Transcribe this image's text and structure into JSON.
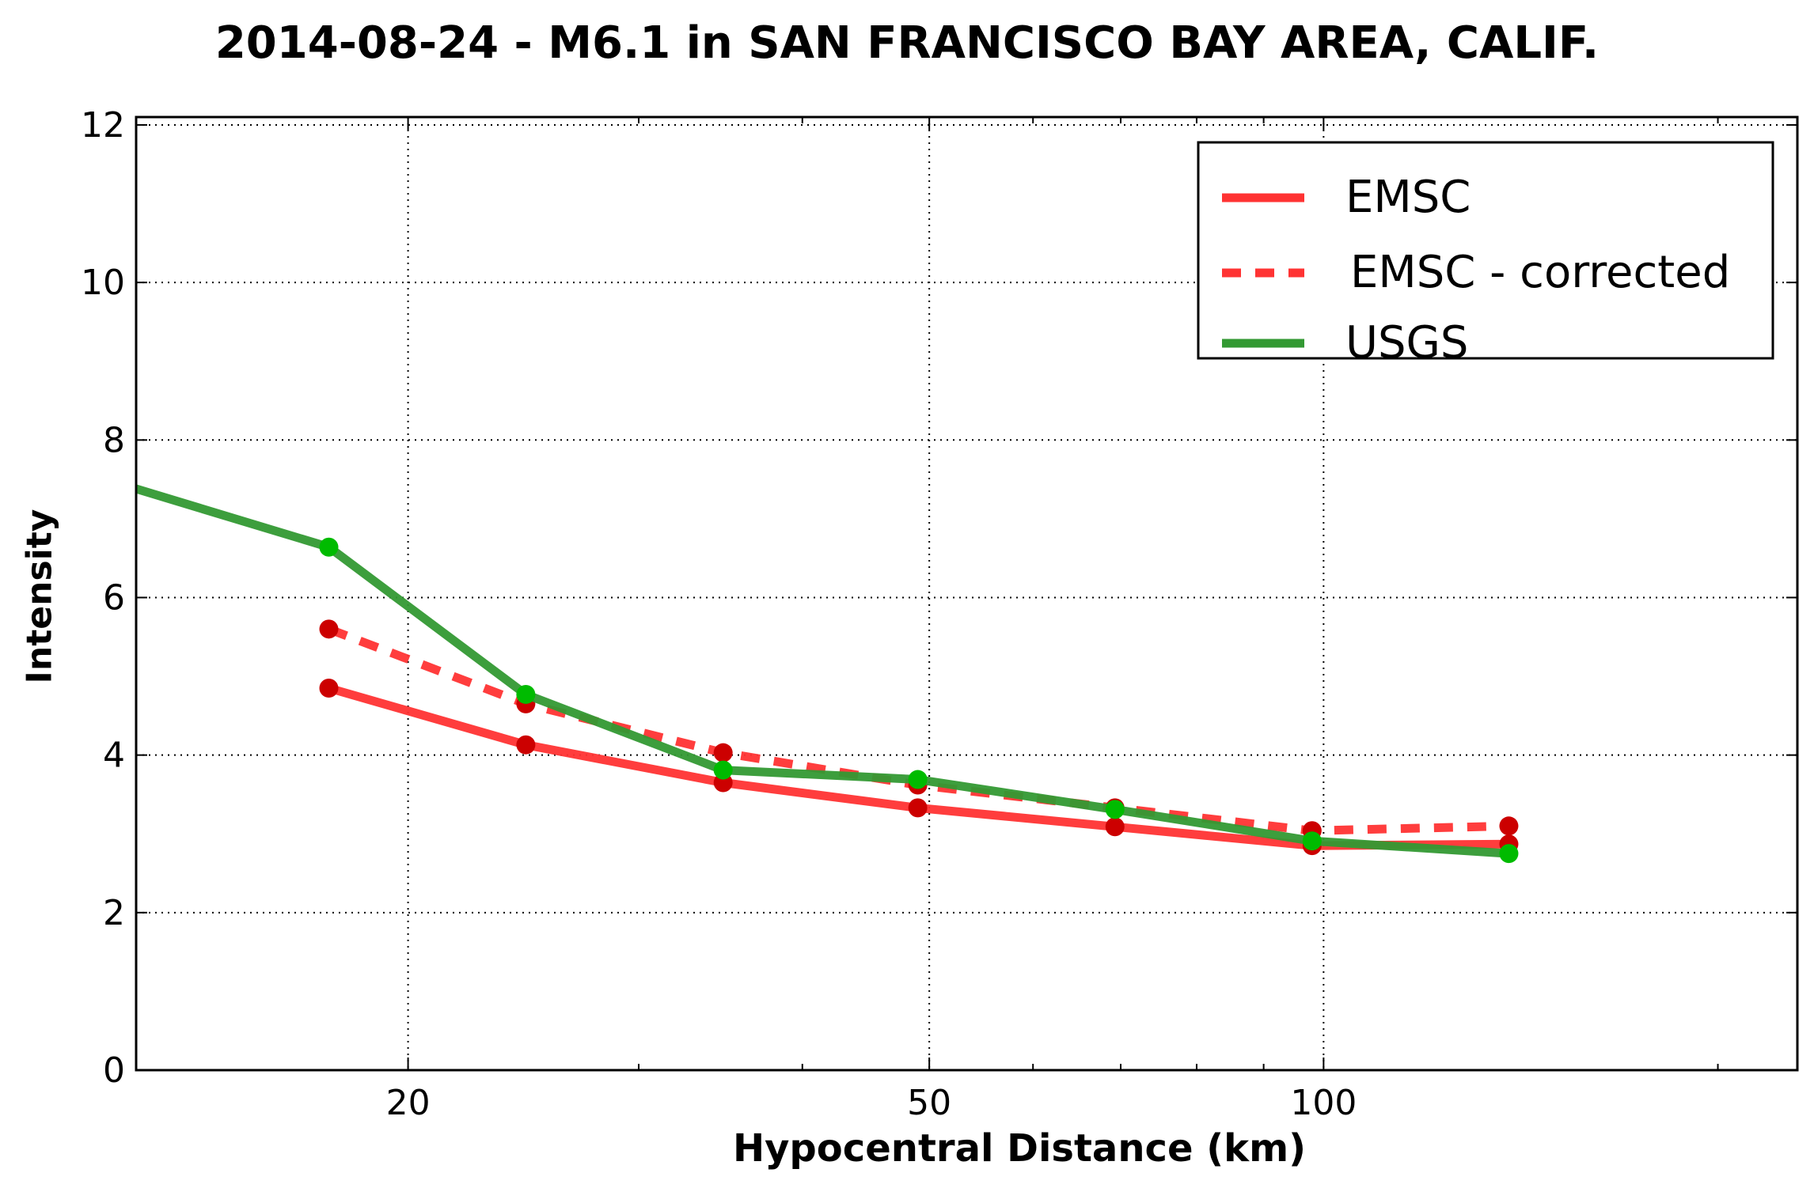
{
  "chart_data": {
    "type": "line",
    "title": "2014-08-24 - M6.1 in SAN FRANCISCO BAY AREA, CALIF.",
    "xlabel": "Hypocentral Distance (km)",
    "ylabel": "Intensity",
    "x_scale": "log",
    "xlim": [
      12.4,
      230
    ],
    "ylim": [
      0,
      12.1
    ],
    "x_ticks": [
      {
        "value": 20,
        "label": "20"
      },
      {
        "value": 50,
        "label": "50"
      },
      {
        "value": 100,
        "label": "100"
      }
    ],
    "y_ticks": [
      {
        "value": 0,
        "label": "0"
      },
      {
        "value": 2,
        "label": "2"
      },
      {
        "value": 4,
        "label": "4"
      },
      {
        "value": 6,
        "label": "6"
      },
      {
        "value": 8,
        "label": "8"
      },
      {
        "value": 10,
        "label": "10"
      },
      {
        "value": 12,
        "label": "12"
      }
    ],
    "grid": true,
    "legend_position": "top-right",
    "series": [
      {
        "name": "EMSC",
        "color": "#ff3333",
        "line_style": "solid",
        "marker_color": "#cc0000",
        "x": [
          17.4,
          24.6,
          34.8,
          49.0,
          69.3,
          98.0,
          138.5
        ],
        "y": [
          4.85,
          4.13,
          3.65,
          3.33,
          3.09,
          2.85,
          2.87
        ]
      },
      {
        "name": "EMSC - corrected",
        "color": "#ff3333",
        "line_style": "dashed",
        "marker_color": "#cc0000",
        "x": [
          17.4,
          24.6,
          34.8,
          49.0,
          69.3,
          98.0,
          138.5
        ],
        "y": [
          5.6,
          4.65,
          4.03,
          3.62,
          3.33,
          3.04,
          3.1
        ]
      },
      {
        "name": "USGS",
        "color": "#339933",
        "line_style": "solid",
        "marker_color": "#00bb00",
        "x": [
          12.4,
          17.4,
          24.6,
          34.8,
          49.0,
          69.3,
          98.0,
          138.5
        ],
        "y": [
          7.38,
          6.64,
          4.77,
          3.81,
          3.69,
          3.31,
          2.91,
          2.75
        ],
        "markers_from_index": 1
      }
    ]
  }
}
